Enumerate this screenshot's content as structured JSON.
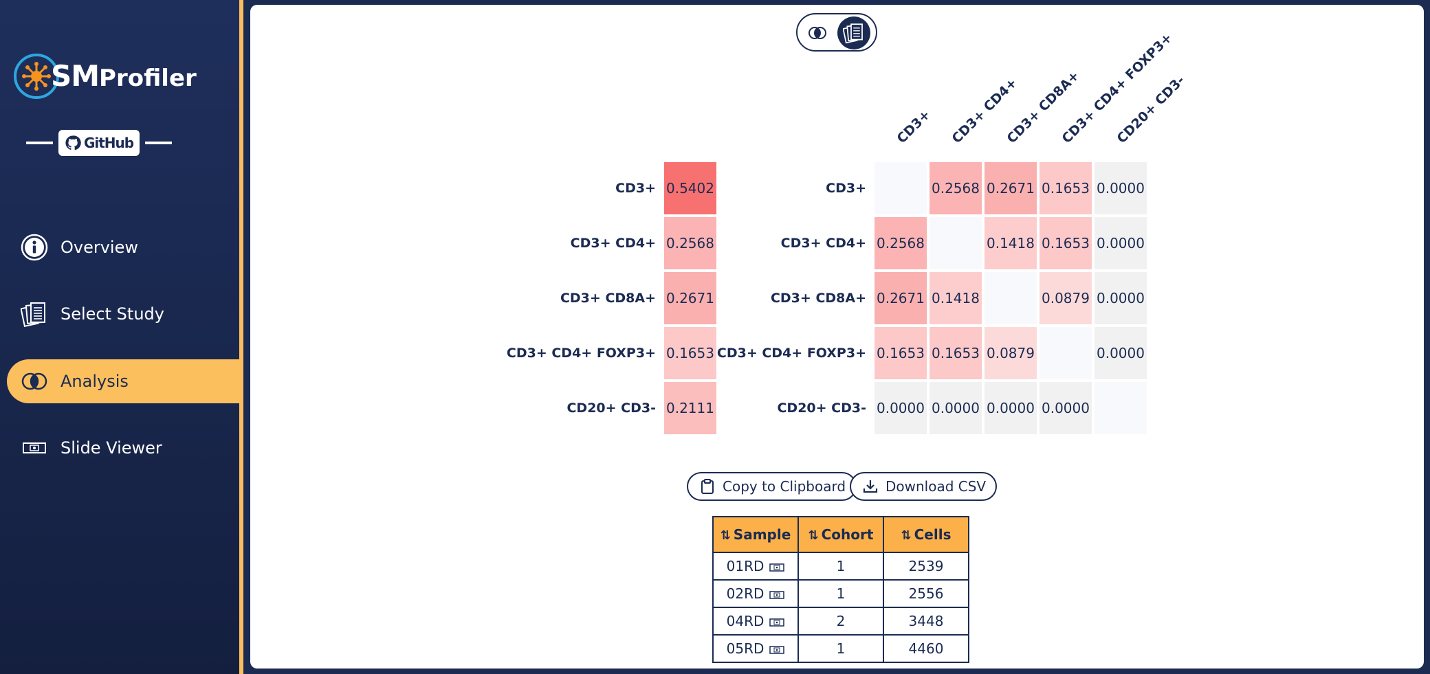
{
  "app": {
    "logo_main": "SM",
    "logo_sub": "Profiler",
    "github_label": "GitHub"
  },
  "sidebar": {
    "items": [
      {
        "label": "Overview",
        "icon": "info-icon",
        "active": false
      },
      {
        "label": "Select Study",
        "icon": "documents-icon",
        "active": false
      },
      {
        "label": "Analysis",
        "icon": "venn-icon",
        "active": true
      },
      {
        "label": "Slide Viewer",
        "icon": "slide-icon",
        "active": false
      }
    ]
  },
  "toggle": {
    "options": [
      "venn-icon",
      "documents-icon"
    ],
    "selected": "documents-icon"
  },
  "phenotypes": [
    "CD3+",
    "CD3+ CD4+",
    "CD3+ CD8A+",
    "CD3+ CD4+ FOXP3+",
    "CD20+ CD3-"
  ],
  "single_values": [
    "0.5402",
    "0.2568",
    "0.2671",
    "0.1653",
    "0.2111"
  ],
  "matrix": [
    [
      "",
      "0.2568",
      "0.2671",
      "0.1653",
      "0.0000"
    ],
    [
      "0.2568",
      "",
      "0.1418",
      "0.1653",
      "0.0000"
    ],
    [
      "0.2671",
      "0.1418",
      "",
      "0.0879",
      "0.0000"
    ],
    [
      "0.1653",
      "0.1653",
      "0.0879",
      "",
      "0.0000"
    ],
    [
      "0.0000",
      "0.0000",
      "0.0000",
      "0.0000",
      ""
    ]
  ],
  "actions": {
    "copy_label": "Copy to Clipboard",
    "download_label": "Download CSV"
  },
  "table": {
    "headers": [
      "Sample",
      "Cohort",
      "Cells"
    ],
    "rows": [
      [
        "01RD",
        "1",
        "2539"
      ],
      [
        "02RD",
        "1",
        "2556"
      ],
      [
        "04RD",
        "2",
        "3448"
      ],
      [
        "05RD",
        "1",
        "4460"
      ]
    ]
  },
  "colors": {
    "navy": "#1b2b52",
    "accent": "#fbbf5e",
    "heat_max": "#f87171"
  }
}
